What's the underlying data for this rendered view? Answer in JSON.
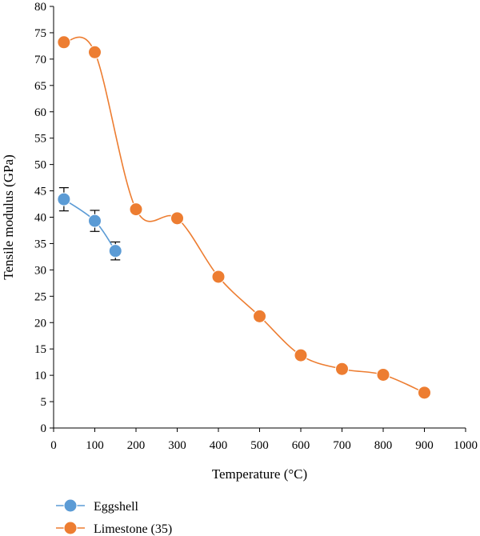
{
  "chart_data": {
    "type": "line",
    "title": "",
    "xlabel": "Temperature (°C)",
    "ylabel": "Tensile modulus (GPa)",
    "xlim": [
      0,
      1000
    ],
    "ylim": [
      0,
      80
    ],
    "x_ticks": [
      "0",
      "100",
      "200",
      "300",
      "400",
      "500",
      "600",
      "700",
      "800",
      "900",
      "1000"
    ],
    "y_ticks": [
      "0",
      "5",
      "10",
      "15",
      "20",
      "25",
      "30",
      "35",
      "40",
      "45",
      "50",
      "55",
      "60",
      "65",
      "70",
      "75",
      "80"
    ],
    "grid": false,
    "legend_position": "bottom-left",
    "smooth": true,
    "series": [
      {
        "name": "Eggshell",
        "color": "#5b9bd5",
        "x": [
          25,
          100,
          150
        ],
        "y": [
          43.4,
          39.3,
          33.6
        ],
        "error": [
          2.2,
          2.0,
          1.7
        ]
      },
      {
        "name": "Limestone (35)",
        "color": "#ed7d31",
        "x": [
          25,
          100,
          200,
          300,
          400,
          500,
          600,
          700,
          800,
          900
        ],
        "y": [
          73.2,
          71.3,
          41.5,
          39.8,
          28.7,
          21.2,
          13.8,
          11.2,
          10.1,
          6.7
        ]
      }
    ]
  }
}
